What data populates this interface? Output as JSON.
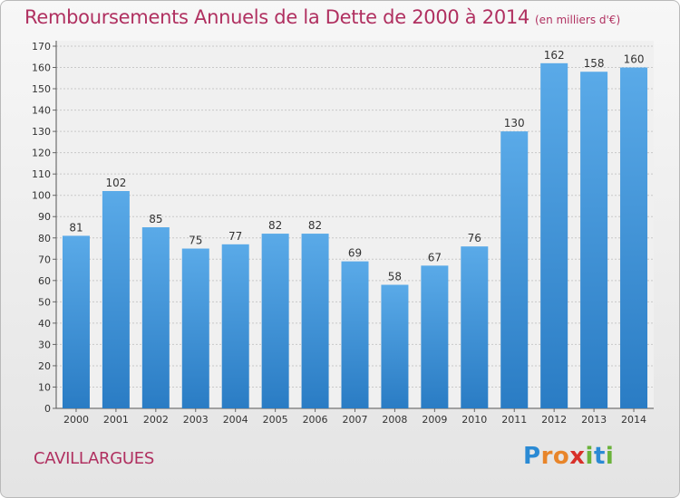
{
  "title": "Remboursements Annuels de la Dette de 2000 à 2014",
  "unit_note": "(en milliers d'€)",
  "commune": "CAVILLARGUES",
  "logo": "Proxiti",
  "colors": {
    "bar": "#3a8fd8",
    "bar_light": "#5aaae8",
    "title": "#b03060",
    "grid": "#c8c8c8"
  },
  "chart_data": {
    "type": "bar",
    "title": "Remboursements Annuels de la Dette de 2000 à 2014",
    "subtitle": "(en milliers d'€)",
    "categories": [
      "2000",
      "2001",
      "2002",
      "2003",
      "2004",
      "2005",
      "2006",
      "2007",
      "2008",
      "2009",
      "2010",
      "2011",
      "2012",
      "2013",
      "2014"
    ],
    "values": [
      81,
      102,
      85,
      75,
      77,
      82,
      82,
      69,
      58,
      67,
      76,
      130,
      162,
      158,
      160
    ],
    "ylim": [
      0,
      170
    ],
    "yticks": [
      0,
      10,
      20,
      30,
      40,
      50,
      60,
      70,
      80,
      90,
      100,
      110,
      120,
      130,
      140,
      150,
      160,
      170
    ],
    "grid": true,
    "legend": "none"
  }
}
